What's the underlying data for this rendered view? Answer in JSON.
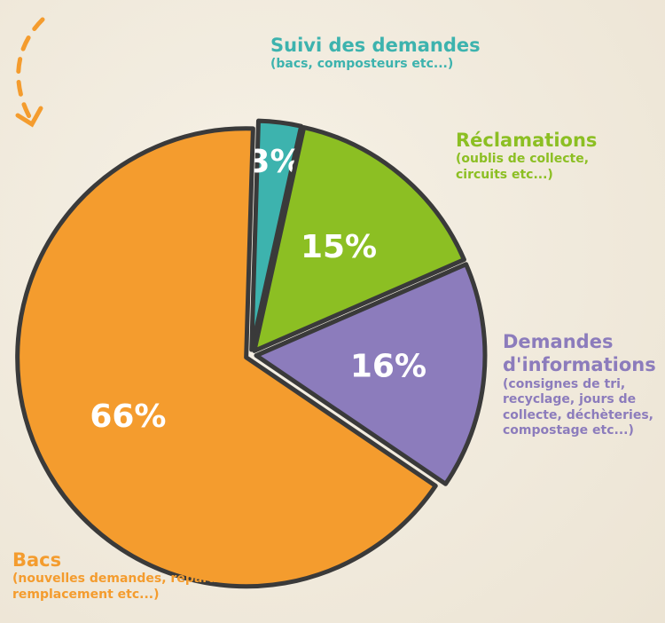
{
  "chart_data": {
    "type": "pie",
    "categories": [
      "Suivi des demandes",
      "Réclamations",
      "Demandes d'informations",
      "Bacs"
    ],
    "descriptions": [
      "(bacs, composteurs etc...)",
      "(oublis de collecte, circuits etc...)",
      "(consignes de tri, recyclage, jours de collecte, déchèteries, compostage etc...)",
      "(nouvelles demandes, réparations, remplacement etc...)"
    ],
    "values": [
      3,
      15,
      16,
      66
    ],
    "value_labels": [
      "3%",
      "15%",
      "16%",
      "66%"
    ],
    "colors": [
      "#3db3ae",
      "#8cbf23",
      "#8c7cbc",
      "#f49c2e"
    ]
  }
}
